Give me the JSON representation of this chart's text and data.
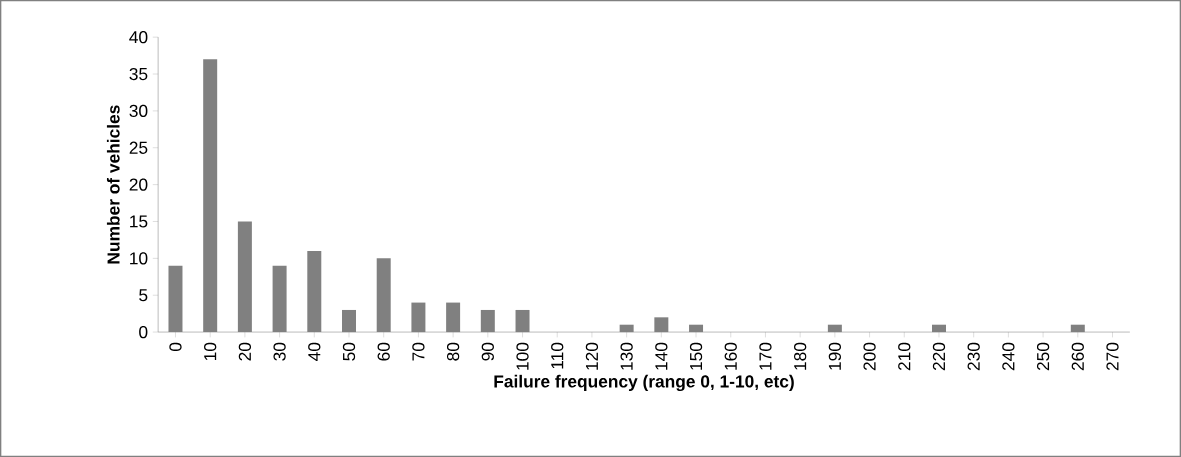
{
  "chart_data": {
    "type": "bar",
    "xlabel": "Failure frequency (range 0, 1-10, etc)",
    "ylabel": "Number of vehicles",
    "categories": [
      "0",
      "10",
      "20",
      "30",
      "40",
      "50",
      "60",
      "70",
      "80",
      "90",
      "100",
      "110",
      "120",
      "130",
      "140",
      "150",
      "160",
      "170",
      "180",
      "190",
      "200",
      "210",
      "220",
      "230",
      "240",
      "250",
      "260",
      "270"
    ],
    "values": [
      9,
      37,
      15,
      9,
      11,
      3,
      10,
      4,
      4,
      3,
      3,
      0,
      0,
      1,
      2,
      1,
      0,
      0,
      0,
      1,
      0,
      0,
      1,
      0,
      0,
      0,
      1,
      0
    ],
    "color": "#808080",
    "ylim": [
      0,
      40
    ],
    "yticks": [
      0,
      5,
      10,
      15,
      20,
      25,
      30,
      35,
      40
    ],
    "grid": false
  }
}
